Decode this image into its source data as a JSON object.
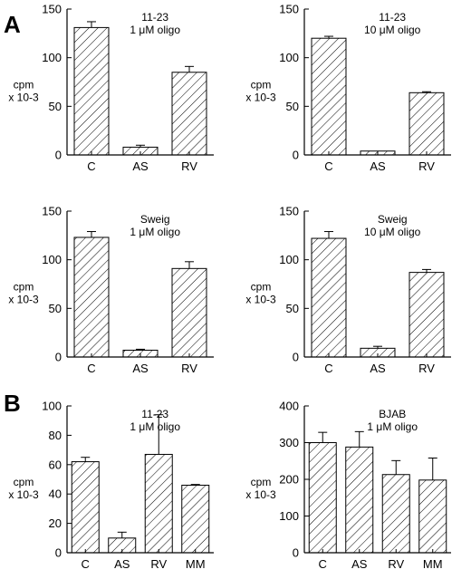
{
  "figure": {
    "panel_labels": [
      "A",
      "B"
    ]
  },
  "chart_data": [
    {
      "type": "bar",
      "panel": "A",
      "title_lines": [
        "11-23",
        "1 μM oligo"
      ],
      "ylabel_lines": [
        "cpm",
        "x 10-3"
      ],
      "categories": [
        "C",
        "AS",
        "RV"
      ],
      "values": [
        131,
        8,
        85
      ],
      "errors": [
        6,
        2,
        6
      ],
      "ylim": [
        0,
        150
      ],
      "yticks": [
        0,
        50,
        100,
        150
      ]
    },
    {
      "type": "bar",
      "panel": "A",
      "title_lines": [
        "11-23",
        "10 μM oligo"
      ],
      "ylabel_lines": [
        "cpm",
        "x 10-3"
      ],
      "categories": [
        "C",
        "AS",
        "RV"
      ],
      "values": [
        120,
        4,
        64
      ],
      "errors": [
        2,
        0,
        1
      ],
      "ylim": [
        0,
        150
      ],
      "yticks": [
        0,
        50,
        100,
        150
      ]
    },
    {
      "type": "bar",
      "panel": "A",
      "title_lines": [
        "Sweig",
        "1 μM oligo"
      ],
      "ylabel_lines": [
        "cpm",
        "x 10-3"
      ],
      "categories": [
        "C",
        "AS",
        "RV"
      ],
      "values": [
        123,
        7,
        91
      ],
      "errors": [
        6,
        1,
        7
      ],
      "ylim": [
        0,
        150
      ],
      "yticks": [
        0,
        50,
        100,
        150
      ]
    },
    {
      "type": "bar",
      "panel": "A",
      "title_lines": [
        "Sweig",
        "10 μM oligo"
      ],
      "ylabel_lines": [
        "cpm",
        "x 10-3"
      ],
      "categories": [
        "C",
        "AS",
        "RV"
      ],
      "values": [
        122,
        9,
        87
      ],
      "errors": [
        7,
        2,
        3
      ],
      "ylim": [
        0,
        150
      ],
      "yticks": [
        0,
        50,
        100,
        150
      ]
    },
    {
      "type": "bar",
      "panel": "B",
      "title_lines": [
        "11-23",
        "1 μM oligo"
      ],
      "ylabel_lines": [
        "cpm",
        "x 10-3"
      ],
      "categories": [
        "C",
        "AS",
        "RV",
        "MM"
      ],
      "values": [
        62,
        10,
        67,
        46
      ],
      "errors": [
        3,
        4,
        27,
        0.5
      ],
      "ylim": [
        0,
        100
      ],
      "yticks": [
        0,
        20,
        40,
        60,
        80,
        100
      ]
    },
    {
      "type": "bar",
      "panel": "B",
      "title_lines": [
        "BJAB",
        "1 μM oligo"
      ],
      "ylabel_lines": [
        "cpm",
        "x 10-3"
      ],
      "categories": [
        "C",
        "AS",
        "RV",
        "MM"
      ],
      "values": [
        300,
        288,
        213,
        198
      ],
      "errors": [
        28,
        42,
        38,
        60
      ],
      "ylim": [
        0,
        400
      ],
      "yticks": [
        0,
        100,
        200,
        300,
        400
      ]
    }
  ]
}
